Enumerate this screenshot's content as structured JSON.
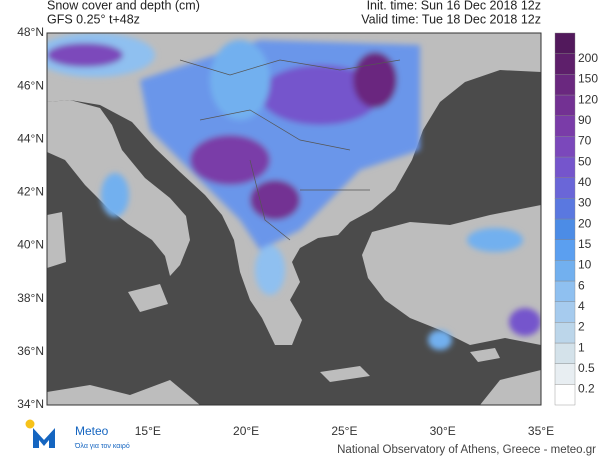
{
  "header": {
    "title": "Snow cover and depth (cm)",
    "model": "GFS 0.25° t+48z",
    "init_time": "Init. time: Sun 16 Dec 2018 12z",
    "valid_time": "Valid time: Tue 18 Dec 2018 12z"
  },
  "map": {
    "lat_labels": [
      "48°N",
      "46°N",
      "44°N",
      "42°N",
      "40°N",
      "38°N",
      "36°N",
      "34°N"
    ],
    "lon_labels": [
      "15°E",
      "20°E",
      "25°E",
      "30°E",
      "35°E"
    ]
  },
  "colorbar": {
    "labels": [
      "0.2",
      "0.5",
      "1",
      "2",
      "4",
      "6",
      "10",
      "15",
      "20",
      "30",
      "40",
      "50",
      "70",
      "90",
      "120",
      "150",
      "200"
    ],
    "colors": [
      "#ffffff",
      "#e8eef2",
      "#d4e2ea",
      "#bcd6ea",
      "#a6cbee",
      "#8fc0f0",
      "#72b0ef",
      "#5b9ff0",
      "#4c8ce6",
      "#5a78e0",
      "#6a66d8",
      "#7555cc",
      "#7b48bb",
      "#7a3ca8",
      "#733193",
      "#6a287f",
      "#5e1f6b",
      "#52195c"
    ]
  },
  "footer": {
    "brand": "Meteo",
    "slogan": "Όλα για τον καιρό",
    "credit": "National Observatory of Athens, Greece - meteo.gr"
  }
}
